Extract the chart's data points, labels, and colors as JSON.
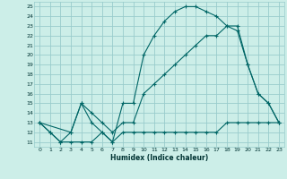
{
  "xlabel": "Humidex (Indice chaleur)",
  "bg_color": "#cceee8",
  "grid_color": "#99cccc",
  "line_color": "#006666",
  "xlim": [
    -0.5,
    23.5
  ],
  "ylim": [
    10.5,
    25.5
  ],
  "yticks": [
    11,
    12,
    13,
    14,
    15,
    16,
    17,
    18,
    19,
    20,
    21,
    22,
    23,
    24,
    25
  ],
  "xticks": [
    0,
    1,
    2,
    3,
    4,
    5,
    6,
    7,
    8,
    9,
    10,
    11,
    12,
    13,
    14,
    15,
    16,
    17,
    18,
    19,
    20,
    21,
    22,
    23
  ],
  "lines": [
    {
      "x": [
        0,
        1,
        2,
        3,
        4,
        5,
        6,
        7,
        8,
        9,
        10,
        11,
        12,
        13,
        14,
        15,
        16,
        17,
        18,
        19,
        20,
        21,
        22,
        23
      ],
      "y": [
        13,
        12,
        11,
        11,
        11,
        11,
        12,
        11,
        12,
        12,
        12,
        12,
        12,
        12,
        12,
        12,
        12,
        12,
        13,
        13,
        13,
        13,
        13,
        13
      ]
    },
    {
      "x": [
        0,
        1,
        2,
        3,
        4,
        5,
        6,
        7,
        8,
        9,
        10,
        11,
        12,
        13,
        14,
        15,
        16,
        17,
        18,
        19,
        20,
        21,
        22,
        23
      ],
      "y": [
        13,
        12,
        11,
        12,
        15,
        13,
        12,
        11,
        15,
        15,
        20,
        22,
        23.5,
        24.5,
        25,
        25,
        24.5,
        24,
        23,
        22.5,
        19,
        16,
        15,
        13
      ]
    },
    {
      "x": [
        0,
        3,
        4,
        5,
        6,
        7,
        8,
        9,
        10,
        11,
        12,
        13,
        14,
        15,
        16,
        17,
        18,
        19,
        20,
        21,
        22,
        23
      ],
      "y": [
        13,
        12,
        15,
        14,
        13,
        12,
        13,
        13,
        16,
        17,
        18,
        19,
        20,
        21,
        22,
        22,
        23,
        23,
        19,
        16,
        15,
        13
      ]
    }
  ]
}
